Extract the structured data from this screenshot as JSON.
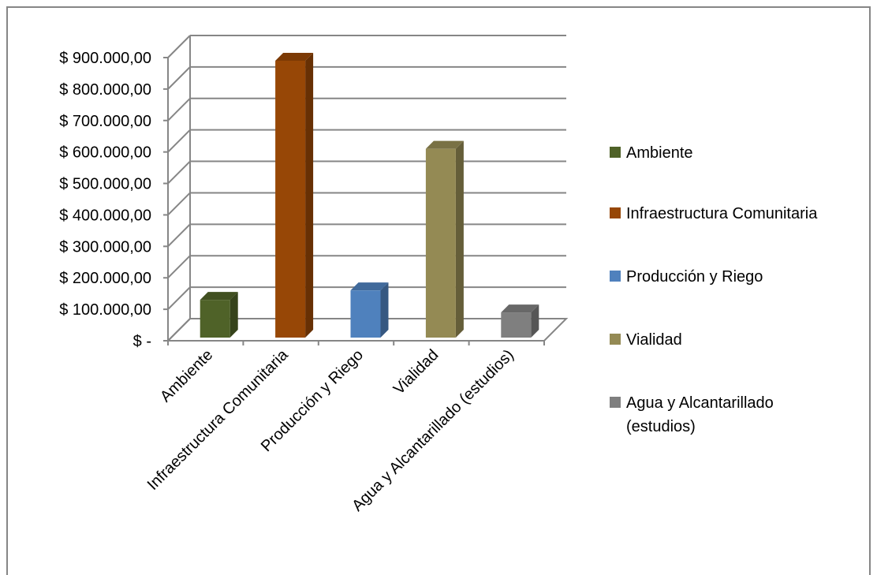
{
  "chart_data": {
    "type": "bar",
    "three_d": true,
    "categories": [
      "Ambiente",
      "Infraestructura Comunitaria",
      "Producción y Riego",
      "Vialidad",
      "Agua y Alcantarillado (estudios)"
    ],
    "values": [
      120000,
      880000,
      150000,
      600000,
      80000
    ],
    "colors": [
      "#4f6228",
      "#974706",
      "#4f81bd",
      "#948a54",
      "#7f7f7f"
    ],
    "ylim": [
      0,
      900000
    ],
    "yticks": [
      0,
      100000,
      200000,
      300000,
      400000,
      500000,
      600000,
      700000,
      800000,
      900000
    ],
    "ytick_labels": [
      "$ -",
      "$ 100.000,00",
      "$ 200.000,00",
      "$ 300.000,00",
      "$ 400.000,00",
      "$ 500.000,00",
      "$ 600.000,00",
      "$ 700.000,00",
      "$ 800.000,00",
      "$ 900.000,00"
    ],
    "grid": true,
    "legend_position": "right",
    "legend": [
      {
        "lines": [
          "Ambiente"
        ],
        "color": "#4f6228"
      },
      {
        "lines": [
          "Infraestructura Comunitaria"
        ],
        "color": "#974706"
      },
      {
        "lines": [
          "Producción y Riego"
        ],
        "color": "#4f81bd"
      },
      {
        "lines": [
          "Vialidad"
        ],
        "color": "#948a54"
      },
      {
        "lines": [
          "Agua y Alcantarillado",
          "(estudios)"
        ],
        "color": "#7f7f7f"
      }
    ]
  }
}
